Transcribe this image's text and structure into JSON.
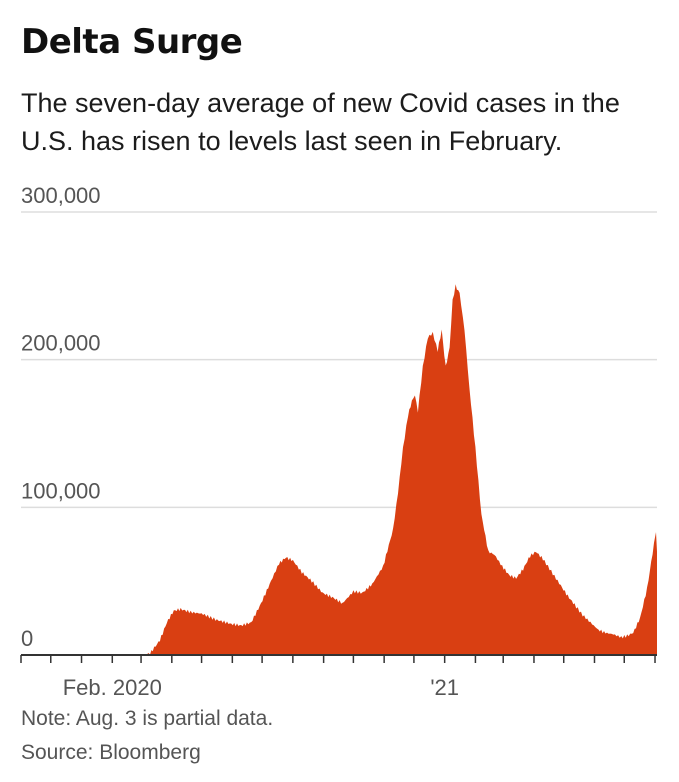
{
  "title": "Delta Surge",
  "subtitle": "The seven-day average of new Covid cases in the U.S. has risen to levels last seen in February.",
  "note": "Note: Aug. 3 is partial data.",
  "source": "Source: Bloomberg",
  "colors": {
    "area": "#d93f12",
    "grid": "#dddddd",
    "axis": "#333333",
    "tick_text": "#555555"
  },
  "chart_data": {
    "type": "area",
    "title": "Delta Surge",
    "xlabel": "",
    "ylabel": "",
    "ylim": [
      0,
      300000
    ],
    "yticks": [
      0,
      100000,
      200000,
      300000
    ],
    "ytick_labels": [
      "0",
      "100,000",
      "200,000",
      "300,000"
    ],
    "xlim": [
      "2019-11-01",
      "2021-08-03"
    ],
    "xtick_labels": [
      {
        "date": "2020-02-01",
        "label": "Feb. 2020"
      },
      {
        "date": "2021-01-01",
        "label": "'21"
      }
    ],
    "month_ticks": [
      "2019-11-01",
      "2019-12-01",
      "2020-01-01",
      "2020-02-01",
      "2020-03-01",
      "2020-04-01",
      "2020-05-01",
      "2020-06-01",
      "2020-07-01",
      "2020-08-01",
      "2020-09-01",
      "2020-10-01",
      "2020-11-01",
      "2020-12-01",
      "2021-01-01",
      "2021-02-01",
      "2021-03-01",
      "2021-04-01",
      "2021-05-01",
      "2021-06-01",
      "2021-07-01",
      "2021-08-01"
    ],
    "grid": true,
    "series": [
      {
        "x": [
          "2019-11-01",
          "2020-02-29",
          "2020-03-10",
          "2020-03-20",
          "2020-03-27",
          "2020-04-03",
          "2020-04-10",
          "2020-04-20",
          "2020-05-01",
          "2020-05-15",
          "2020-05-31",
          "2020-06-10",
          "2020-06-20",
          "2020-06-30",
          "2020-07-10",
          "2020-07-18",
          "2020-07-25",
          "2020-08-01",
          "2020-08-10",
          "2020-08-20",
          "2020-08-31",
          "2020-09-10",
          "2020-09-20",
          "2020-10-01",
          "2020-10-10",
          "2020-10-20",
          "2020-10-31",
          "2020-11-10",
          "2020-11-15",
          "2020-11-20",
          "2020-11-25",
          "2020-11-29",
          "2020-12-02",
          "2020-12-05",
          "2020-12-10",
          "2020-12-15",
          "2020-12-20",
          "2020-12-25",
          "2020-12-29",
          "2021-01-02",
          "2021-01-06",
          "2021-01-09",
          "2021-01-12",
          "2021-01-16",
          "2021-01-21",
          "2021-01-26",
          "2021-02-01",
          "2021-02-07",
          "2021-02-14",
          "2021-02-20",
          "2021-02-28",
          "2021-03-07",
          "2021-03-14",
          "2021-03-21",
          "2021-03-28",
          "2021-04-03",
          "2021-04-10",
          "2021-04-15",
          "2021-04-20",
          "2021-04-28",
          "2021-05-05",
          "2021-05-12",
          "2021-05-20",
          "2021-05-28",
          "2021-06-05",
          "2021-06-12",
          "2021-06-20",
          "2021-06-28",
          "2021-07-04",
          "2021-07-10",
          "2021-07-17",
          "2021-07-24",
          "2021-07-31",
          "2021-08-02",
          "2021-08-03"
        ],
        "y": [
          0,
          0,
          1000,
          10000,
          22000,
          30000,
          31000,
          29000,
          28000,
          24000,
          21000,
          20000,
          22000,
          35000,
          50000,
          62000,
          66000,
          64000,
          56000,
          50000,
          42000,
          39000,
          35000,
          43000,
          42000,
          48000,
          60000,
          85000,
          110000,
          140000,
          162000,
          172000,
          176000,
          165000,
          195000,
          215000,
          218000,
          206000,
          220000,
          195000,
          208000,
          240000,
          250000,
          245000,
          220000,
          180000,
          140000,
          95000,
          70000,
          68000,
          60000,
          54000,
          52000,
          58000,
          67000,
          70000,
          65000,
          60000,
          55000,
          47000,
          40000,
          34000,
          27000,
          22000,
          17000,
          15000,
          14000,
          12000,
          13000,
          15000,
          25000,
          45000,
          75000,
          84000,
          70000
        ]
      }
    ]
  }
}
